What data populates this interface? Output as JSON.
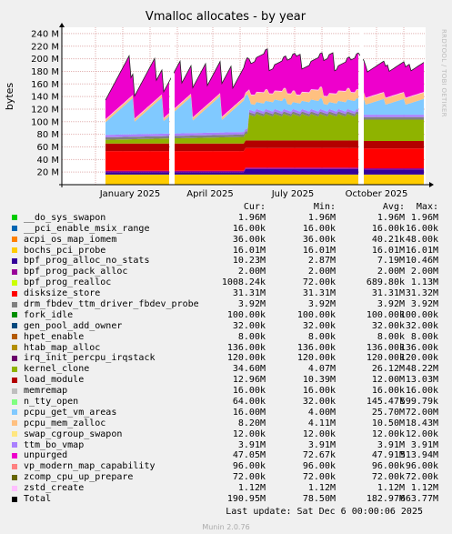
{
  "chart_data": {
    "type": "area",
    "title": "Vmalloc allocates - by year",
    "ylabel": "bytes",
    "side_text": "RRDTOOL / TOBI OETIKER",
    "y_ticks": [
      "20 M",
      "40 M",
      "60 M",
      "80 M",
      "100 M",
      "120 M",
      "140 M",
      "160 M",
      "180 M",
      "200 M",
      "220 M",
      "240 M"
    ],
    "ylim": [
      0,
      250
    ],
    "x_ticks": [
      "January 2025",
      "April 2025",
      "July 2025",
      "October 2025"
    ],
    "grid": true,
    "legend_placement": "bottom",
    "columns": [
      "Cur:",
      "Min:",
      "Avg:",
      "Max:"
    ],
    "series": [
      {
        "name": "__do_sys_swapon",
        "color": "#00cc00",
        "cur": "1.96M",
        "min": "1.96M",
        "avg": "1.96M",
        "max": "1.96M"
      },
      {
        "name": "__pci_enable_msix_range",
        "color": "#0066b3",
        "cur": "16.00k",
        "min": "16.00k",
        "avg": "16.00k",
        "max": "16.00k"
      },
      {
        "name": "acpi_os_map_iomem",
        "color": "#ff8000",
        "cur": "36.00k",
        "min": "36.00k",
        "avg": "40.21k",
        "max": "48.00k"
      },
      {
        "name": "bochs_pci_probe",
        "color": "#ffcc00",
        "cur": "16.01M",
        "min": "16.01M",
        "avg": "16.01M",
        "max": "16.01M"
      },
      {
        "name": "bpf_prog_alloc_no_stats",
        "color": "#330099",
        "cur": "10.23M",
        "min": "2.87M",
        "avg": "7.19M",
        "max": "10.46M"
      },
      {
        "name": "bpf_prog_pack_alloc",
        "color": "#990099",
        "cur": "2.00M",
        "min": "2.00M",
        "avg": "2.00M",
        "max": "2.00M"
      },
      {
        "name": "bpf_prog_realloc",
        "color": "#ccff00",
        "cur": "1008.24k",
        "min": "72.00k",
        "avg": "689.80k",
        "max": "1.13M"
      },
      {
        "name": "disksize_store",
        "color": "#ff0000",
        "cur": "31.31M",
        "min": "31.31M",
        "avg": "31.31M",
        "max": "31.32M"
      },
      {
        "name": "drm_fbdev_ttm_driver_fbdev_probe",
        "color": "#808080",
        "cur": "3.92M",
        "min": "3.92M",
        "avg": "3.92M",
        "max": "3.92M"
      },
      {
        "name": "fork_idle",
        "color": "#008f00",
        "cur": "100.00k",
        "min": "100.00k",
        "avg": "100.00k",
        "max": "100.00k"
      },
      {
        "name": "gen_pool_add_owner",
        "color": "#00487d",
        "cur": "32.00k",
        "min": "32.00k",
        "avg": "32.00k",
        "max": "32.00k"
      },
      {
        "name": "hpet_enable",
        "color": "#b35a00",
        "cur": "8.00k",
        "min": "8.00k",
        "avg": "8.00k",
        "max": "8.00k"
      },
      {
        "name": "htab_map_alloc",
        "color": "#b38f00",
        "cur": "136.00k",
        "min": "136.00k",
        "avg": "136.00k",
        "max": "136.00k"
      },
      {
        "name": "irq_init_percpu_irqstack",
        "color": "#6b006b",
        "cur": "120.00k",
        "min": "120.00k",
        "avg": "120.00k",
        "max": "120.00k"
      },
      {
        "name": "kernel_clone",
        "color": "#8fb300",
        "cur": "34.60M",
        "min": "4.07M",
        "avg": "26.12M",
        "max": "48.22M"
      },
      {
        "name": "load_module",
        "color": "#b30000",
        "cur": "12.96M",
        "min": "10.39M",
        "avg": "12.00M",
        "max": "13.03M"
      },
      {
        "name": "memremap",
        "color": "#bebebe",
        "cur": "16.00k",
        "min": "16.00k",
        "avg": "16.00k",
        "max": "16.00k"
      },
      {
        "name": "n_tty_open",
        "color": "#80ff80",
        "cur": "64.00k",
        "min": "32.00k",
        "avg": "145.47k",
        "max": "599.79k"
      },
      {
        "name": "pcpu_get_vm_areas",
        "color": "#80c9ff",
        "cur": "16.00M",
        "min": "4.00M",
        "avg": "25.70M",
        "max": "72.00M"
      },
      {
        "name": "pcpu_mem_zalloc",
        "color": "#ffc080",
        "cur": "8.20M",
        "min": "4.11M",
        "avg": "10.50M",
        "max": "18.43M"
      },
      {
        "name": "swap_cgroup_swapon",
        "color": "#ffe680",
        "cur": "12.00k",
        "min": "12.00k",
        "avg": "12.00k",
        "max": "12.00k"
      },
      {
        "name": "ttm_bo_vmap",
        "color": "#aa80ff",
        "cur": "3.91M",
        "min": "3.91M",
        "avg": "3.91M",
        "max": "3.91M"
      },
      {
        "name": "unpurged",
        "color": "#ee00cc",
        "cur": "47.05M",
        "min": "72.67k",
        "avg": "47.91M",
        "max": "513.94M"
      },
      {
        "name": "vp_modern_map_capability",
        "color": "#ff8080",
        "cur": "96.00k",
        "min": "96.00k",
        "avg": "96.00k",
        "max": "96.00k"
      },
      {
        "name": "zcomp_cpu_up_prepare",
        "color": "#666600",
        "cur": "72.00k",
        "min": "72.00k",
        "avg": "72.00k",
        "max": "72.00k"
      },
      {
        "name": "zstd_create",
        "color": "#ffbfff",
        "cur": "1.12M",
        "min": "1.12M",
        "avg": "1.12M",
        "max": "1.12M"
      },
      {
        "name": "Total",
        "color": "#000000",
        "cur": "190.95M",
        "min": "78.50M",
        "avg": "182.97M",
        "max": "663.77M"
      }
    ]
  },
  "footer": {
    "last_update": "Last update: Sat Dec  6 00:00:06 2025",
    "munin": "Munin 2.0.76"
  }
}
